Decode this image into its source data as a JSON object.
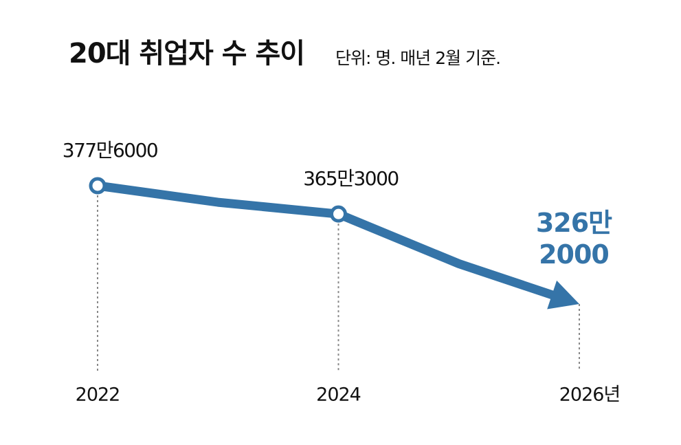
{
  "chart_data": {
    "type": "line",
    "title": "20대 취업자 수 추이",
    "subtitle": "단위: 명. 매년 2월 기준.",
    "categories": [
      "2022",
      null,
      "2024",
      null,
      "2026년"
    ],
    "values": [
      3776000,
      3704000,
      3653000,
      3437000,
      3262000
    ],
    "value_labels": [
      "377만6000",
      null,
      "365만3000",
      null,
      "326만\n2000"
    ],
    "color": "#3574a8"
  }
}
